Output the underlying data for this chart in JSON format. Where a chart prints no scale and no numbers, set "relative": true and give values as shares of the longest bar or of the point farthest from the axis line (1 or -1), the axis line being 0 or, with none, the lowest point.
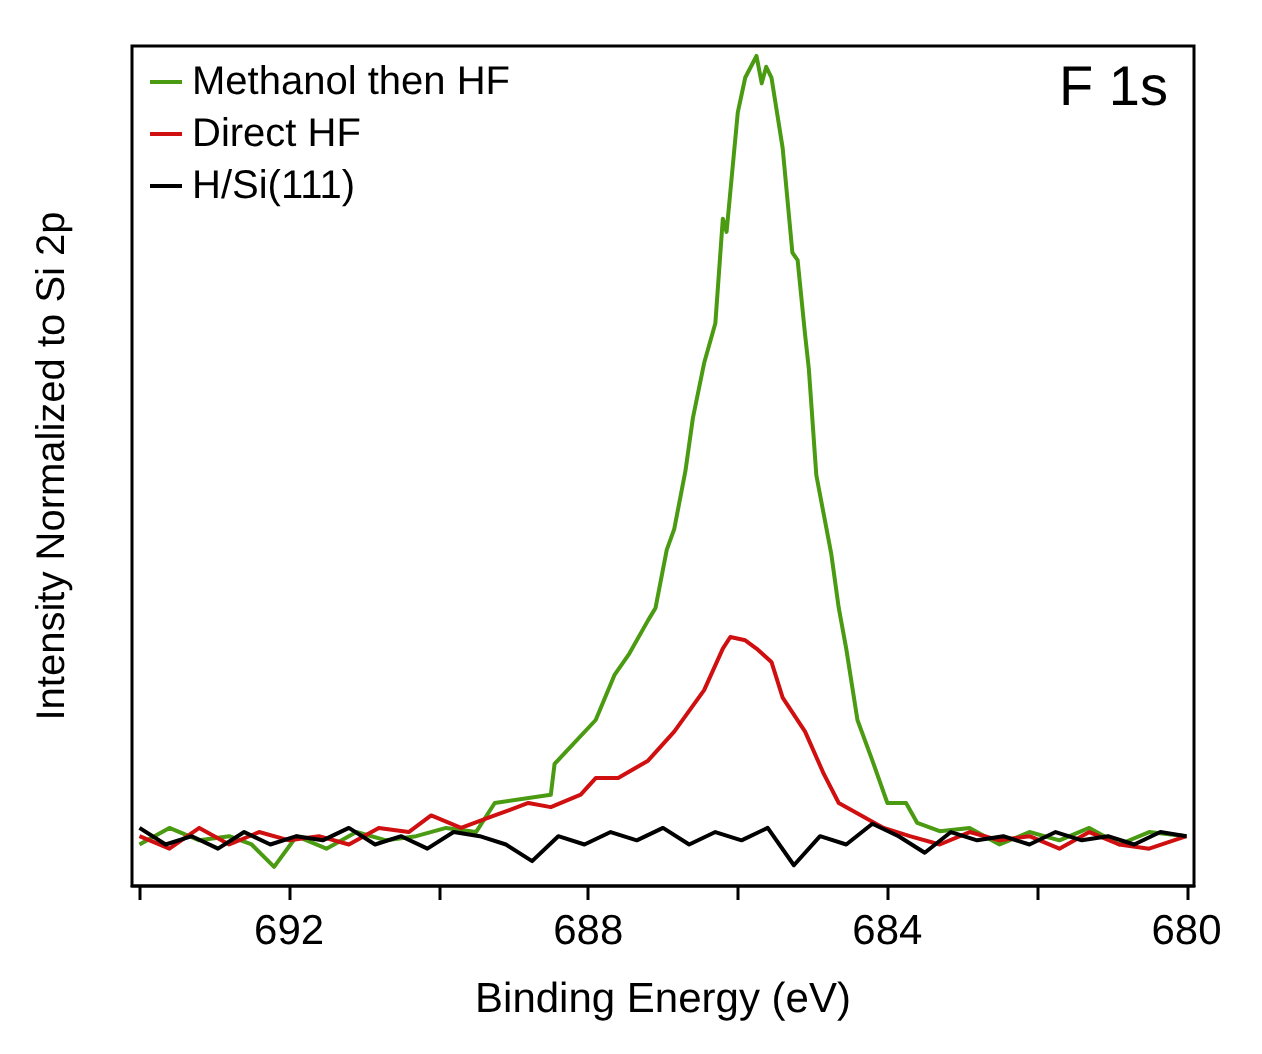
{
  "chart_data": {
    "type": "line",
    "title": "F 1s",
    "xlabel": "Binding Energy (eV)",
    "ylabel": "Intensity Normalized to Si 2p",
    "relative": true,
    "legend": "top left",
    "marker": "none",
    "line_style": "solid",
    "grid": false,
    "xlim": [
      694.1,
      679.9
    ],
    "xticks": [
      {
        "value": 694,
        "label": null
      },
      692,
      {
        "value": 690,
        "label": null
      },
      688,
      {
        "value": 686,
        "label": null
      },
      684,
      {
        "value": 682,
        "label": null
      },
      680
    ],
    "series": [
      {
        "name": "Methanol then HF",
        "color": "#4a9a12",
        "x": [
          694.0,
          693.6,
          693.2,
          692.8,
          692.5,
          692.2,
          691.9,
          691.5,
          691.1,
          690.7,
          690.3,
          689.9,
          689.5,
          689.25,
          688.5,
          688.45,
          687.9,
          687.65,
          687.45,
          687.2,
          687.1,
          686.95,
          686.85,
          686.7,
          686.6,
          686.45,
          686.3,
          686.2,
          686.15,
          686.0,
          685.9,
          685.75,
          685.68,
          685.62,
          685.55,
          685.4,
          685.27,
          685.2,
          685.1,
          685.05,
          684.95,
          684.75,
          684.65,
          684.55,
          684.4,
          684.2,
          684.0,
          683.75,
          683.6,
          683.3,
          682.9,
          682.5,
          682.1,
          681.7,
          681.3,
          680.9,
          680.5,
          680.0
        ],
        "values": [
          0.05,
          0.07,
          0.055,
          0.06,
          0.05,
          0.023,
          0.06,
          0.045,
          0.065,
          0.055,
          0.06,
          0.07,
          0.065,
          0.1,
          0.11,
          0.147,
          0.2,
          0.254,
          0.28,
          0.32,
          0.335,
          0.405,
          0.43,
          0.5,
          0.564,
          0.63,
          0.678,
          0.804,
          0.788,
          0.932,
          0.974,
          1,
          0.967,
          0.987,
          0.974,
          0.889,
          0.763,
          0.754,
          0.664,
          0.623,
          0.495,
          0.4,
          0.335,
          0.286,
          0.2,
          0.151,
          0.1,
          0.1,
          0.076,
          0.066,
          0.07,
          0.05,
          0.065,
          0.055,
          0.07,
          0.05,
          0.065,
          0.06
        ]
      },
      {
        "name": "Direct HF",
        "color": "#d01010",
        "x": [
          694.0,
          693.6,
          693.2,
          692.8,
          692.4,
          692.0,
          691.6,
          691.2,
          690.8,
          690.4,
          690.1,
          689.7,
          689.25,
          688.8,
          688.5,
          688.1,
          687.9,
          687.6,
          687.2,
          686.85,
          686.45,
          686.2,
          686.1,
          685.9,
          685.75,
          685.55,
          685.4,
          685.1,
          684.85,
          684.65,
          684.35,
          684.05,
          683.7,
          683.3,
          682.9,
          682.5,
          682.1,
          681.7,
          681.3,
          680.9,
          680.5,
          680.0
        ],
        "values": [
          0.06,
          0.045,
          0.07,
          0.05,
          0.065,
          0.055,
          0.06,
          0.05,
          0.07,
          0.065,
          0.085,
          0.07,
          0.085,
          0.1,
          0.095,
          0.11,
          0.13,
          0.13,
          0.151,
          0.186,
          0.236,
          0.286,
          0.3,
          0.296,
          0.286,
          0.27,
          0.227,
          0.186,
          0.135,
          0.1,
          0.085,
          0.07,
          0.06,
          0.05,
          0.065,
          0.055,
          0.06,
          0.045,
          0.065,
          0.05,
          0.045,
          0.06
        ]
      },
      {
        "name": "H/Si(111)",
        "color": "#000000",
        "x": [
          694.0,
          693.65,
          693.3,
          692.95,
          692.6,
          692.25,
          691.9,
          691.55,
          691.2,
          690.85,
          690.5,
          690.15,
          689.8,
          689.45,
          689.1,
          688.75,
          688.4,
          688.05,
          687.7,
          687.35,
          687.0,
          686.65,
          686.3,
          685.95,
          685.6,
          685.25,
          684.9,
          684.55,
          684.2,
          683.85,
          683.5,
          683.15,
          682.8,
          682.45,
          682.1,
          681.75,
          681.4,
          681.05,
          680.7,
          680.35,
          680.0
        ],
        "values": [
          0.07,
          0.05,
          0.06,
          0.045,
          0.065,
          0.05,
          0.06,
          0.055,
          0.07,
          0.05,
          0.06,
          0.045,
          0.065,
          0.06,
          0.05,
          0.03,
          0.06,
          0.05,
          0.065,
          0.055,
          0.07,
          0.05,
          0.065,
          0.055,
          0.07,
          0.025,
          0.06,
          0.05,
          0.075,
          0.06,
          0.04,
          0.065,
          0.055,
          0.06,
          0.05,
          0.065,
          0.055,
          0.06,
          0.05,
          0.065,
          0.06
        ]
      }
    ]
  }
}
